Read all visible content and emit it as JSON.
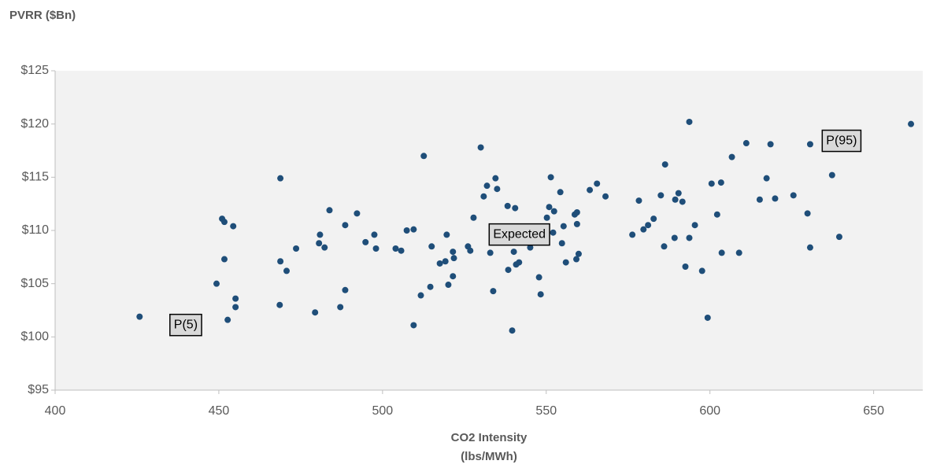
{
  "chart_data": {
    "type": "scatter",
    "ylabel": "PVRR ($Bn)",
    "xlabel": [
      "CO2 Intensity",
      "(lbs/MWh)"
    ],
    "color": "#1f4e79",
    "x": [
      425.8,
      451.0,
      451.7,
      454.4,
      451.7,
      449.3,
      455.1,
      455.1,
      452.7,
      468.8,
      468.8,
      470.7,
      468.6,
      473.6,
      479.4,
      480.6,
      480.9,
      482.3,
      483.8,
      487.1,
      488.6,
      488.6,
      492.2,
      494.8,
      497.5,
      498.0,
      504.0,
      505.7,
      507.4,
      509.5,
      509.5,
      511.7,
      512.6,
      514.6,
      515.0,
      517.5,
      519.2,
      519.6,
      520.1,
      521.5,
      521.8,
      521.5,
      526.1,
      526.8,
      527.8,
      530.0,
      530.9,
      531.9,
      532.9,
      533.8,
      534.5,
      535.0,
      538.2,
      538.4,
      539.6,
      540.1,
      540.5,
      540.8,
      541.7,
      545.1,
      547.8,
      548.3,
      550.2,
      550.9,
      551.4,
      552.4,
      552.1,
      554.3,
      554.8,
      555.3,
      556.0,
      558.7,
      559.4,
      559.4,
      559.2,
      559.9,
      563.3,
      565.5,
      568.1,
      576.3,
      578.3,
      579.7,
      581.1,
      582.8,
      585.0,
      586.0,
      586.3,
      589.2,
      589.4,
      590.4,
      591.6,
      592.5,
      593.7,
      593.7,
      595.4,
      597.6,
      599.3,
      600.5,
      602.2,
      603.4,
      603.6,
      606.7,
      608.9,
      611.1,
      615.2,
      617.3,
      618.5,
      619.9,
      625.5,
      629.8,
      630.6,
      630.6,
      637.3,
      639.5,
      661.4
    ],
    "values": [
      101.9,
      111.1,
      110.8,
      110.4,
      107.3,
      105.0,
      103.6,
      102.8,
      101.6,
      114.9,
      107.1,
      106.2,
      103.0,
      108.3,
      102.3,
      108.8,
      109.6,
      108.4,
      111.9,
      102.8,
      110.5,
      104.4,
      111.6,
      108.9,
      109.6,
      108.3,
      108.3,
      108.1,
      110.0,
      110.1,
      101.1,
      103.9,
      117.0,
      104.7,
      108.5,
      106.9,
      107.1,
      109.6,
      104.9,
      108.0,
      107.4,
      105.7,
      108.5,
      108.1,
      111.2,
      117.8,
      113.2,
      114.2,
      107.9,
      104.3,
      114.9,
      113.9,
      112.3,
      106.3,
      100.6,
      108.0,
      112.1,
      106.8,
      107.0,
      108.4,
      105.6,
      104.0,
      111.2,
      112.2,
      115.0,
      111.8,
      109.8,
      113.6,
      108.8,
      110.4,
      107.0,
      111.5,
      111.7,
      110.6,
      107.3,
      107.8,
      113.8,
      114.4,
      113.2,
      109.6,
      112.8,
      110.1,
      110.5,
      111.1,
      113.3,
      108.5,
      116.2,
      109.3,
      112.9,
      113.5,
      112.7,
      106.6,
      120.2,
      109.3,
      110.5,
      106.2,
      101.8,
      114.4,
      111.5,
      114.5,
      107.9,
      116.9,
      107.9,
      118.2,
      112.9,
      114.9,
      118.1,
      113.0,
      113.3,
      111.6,
      108.4,
      118.1,
      115.2,
      109.4,
      120.0
    ],
    "xlim": [
      400,
      665
    ],
    "xticks": [
      400,
      450,
      500,
      550,
      600,
      650
    ],
    "ylim": [
      95,
      125
    ],
    "yticks": [
      {
        "value": 95,
        "label": "$95"
      },
      {
        "value": 100,
        "label": "$100"
      },
      {
        "value": 105,
        "label": "$105"
      },
      {
        "value": 110,
        "label": "$110"
      },
      {
        "value": 115,
        "label": "$115"
      },
      {
        "value": 120,
        "label": "$120"
      },
      {
        "value": 125,
        "label": "$125"
      }
    ],
    "annotations": [
      {
        "text": "P(5)",
        "x": 439.9,
        "y": 101.1
      },
      {
        "text": "Expected",
        "x": 541.8,
        "y": 109.6
      },
      {
        "text": "P(95)",
        "x": 640.2,
        "y": 118.4
      }
    ]
  }
}
